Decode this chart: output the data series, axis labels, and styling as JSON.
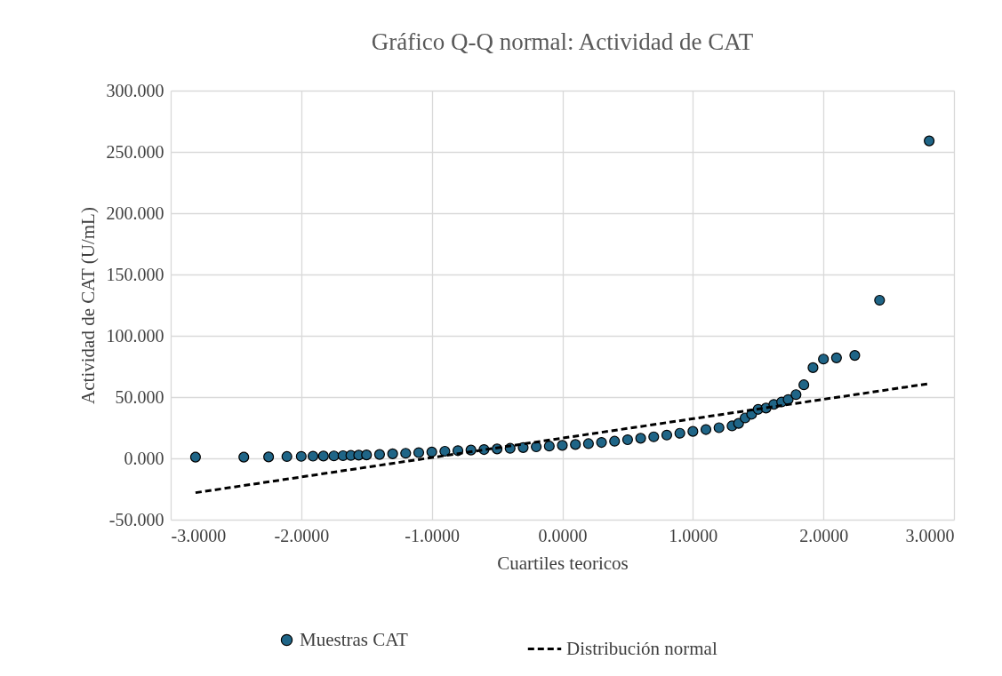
{
  "chart_data": {
    "type": "scatter",
    "title": "Gráfico Q-Q normal: Actividad de CAT",
    "xlabel": "Cuartiles teoricos",
    "ylabel": "Actividad de CAT (U/mL)",
    "xlim": [
      -3,
      3
    ],
    "xticks": [
      {
        "value": -3,
        "label": "-3.0000"
      },
      {
        "value": -2,
        "label": "-2.0000"
      },
      {
        "value": -1,
        "label": "-1.0000"
      },
      {
        "value": 0,
        "label": "0.0000"
      },
      {
        "value": 1,
        "label": "1.0000"
      },
      {
        "value": 2,
        "label": "2.0000"
      },
      {
        "value": 3,
        "label": "3.0000"
      }
    ],
    "ylim": [
      -50,
      300
    ],
    "yticks": [
      {
        "value": -50,
        "label": "-50.000"
      },
      {
        "value": 0,
        "label": "0.000"
      },
      {
        "value": 50,
        "label": "50.000"
      },
      {
        "value": 100,
        "label": "100.000"
      },
      {
        "value": 150,
        "label": "150.000"
      },
      {
        "value": 200,
        "label": "200.000"
      },
      {
        "value": 250,
        "label": "250.000"
      },
      {
        "value": 300,
        "label": "300.000"
      }
    ],
    "grid": true,
    "legend": "bottom",
    "series": [
      {
        "name": "Muestras CAT",
        "type": "scatter",
        "marker": "circle",
        "color": "#1f6587",
        "x": [
          -2.81,
          -2.44,
          -2.25,
          -2.11,
          -2.0,
          -1.91,
          -1.83,
          -1.75,
          -1.68,
          -1.62,
          -1.56,
          -1.5,
          -1.4,
          -1.3,
          -1.2,
          -1.1,
          -1.0,
          -0.9,
          -0.8,
          -0.7,
          -0.6,
          -0.5,
          -0.4,
          -0.3,
          -0.2,
          -0.1,
          0,
          0.1,
          0.2,
          0.3,
          0.4,
          0.5,
          0.6,
          0.7,
          0.8,
          0.9,
          1.0,
          1.1,
          1.2,
          1.3,
          1.35,
          1.4,
          1.45,
          1.5,
          1.56,
          1.62,
          1.68,
          1.73,
          1.79,
          1.85,
          1.92,
          2.0,
          2.1,
          2.24,
          2.43,
          2.81
        ],
        "values": [
          1.0,
          1.0,
          1.2,
          1.5,
          1.6,
          1.8,
          1.9,
          2.0,
          2.2,
          2.4,
          2.6,
          2.8,
          3.2,
          3.7,
          4.2,
          4.7,
          5.2,
          5.8,
          6.3,
          6.8,
          7.2,
          7.7,
          8.2,
          8.8,
          9.4,
          10.0,
          10.6,
          11.3,
          12.0,
          13.0,
          14.0,
          15.2,
          16.4,
          17.6,
          19.0,
          20.5,
          22.0,
          23.5,
          25.0,
          26.5,
          28.5,
          33,
          36,
          40,
          41,
          44,
          46,
          48,
          52,
          60,
          74,
          81,
          82,
          84,
          129,
          259
        ]
      },
      {
        "name": "Distribución normal",
        "type": "line",
        "line_style": "dashed",
        "color": "#000000",
        "x": [
          -2.81,
          2.81
        ],
        "values": [
          -28,
          61
        ]
      }
    ]
  }
}
